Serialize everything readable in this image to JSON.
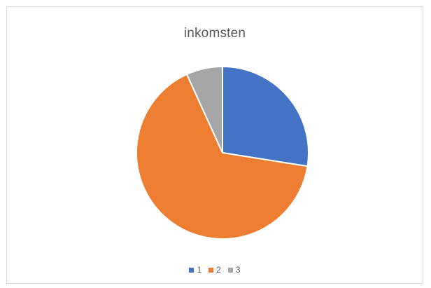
{
  "chart_data": {
    "type": "pie",
    "title": "inkomsten",
    "categories": [
      "1",
      "2",
      "3"
    ],
    "values": [
      27.5,
      65.7,
      6.8
    ],
    "colors": [
      "#4472c4",
      "#ed7d31",
      "#a5a5a5"
    ],
    "legend_position": "bottom"
  }
}
